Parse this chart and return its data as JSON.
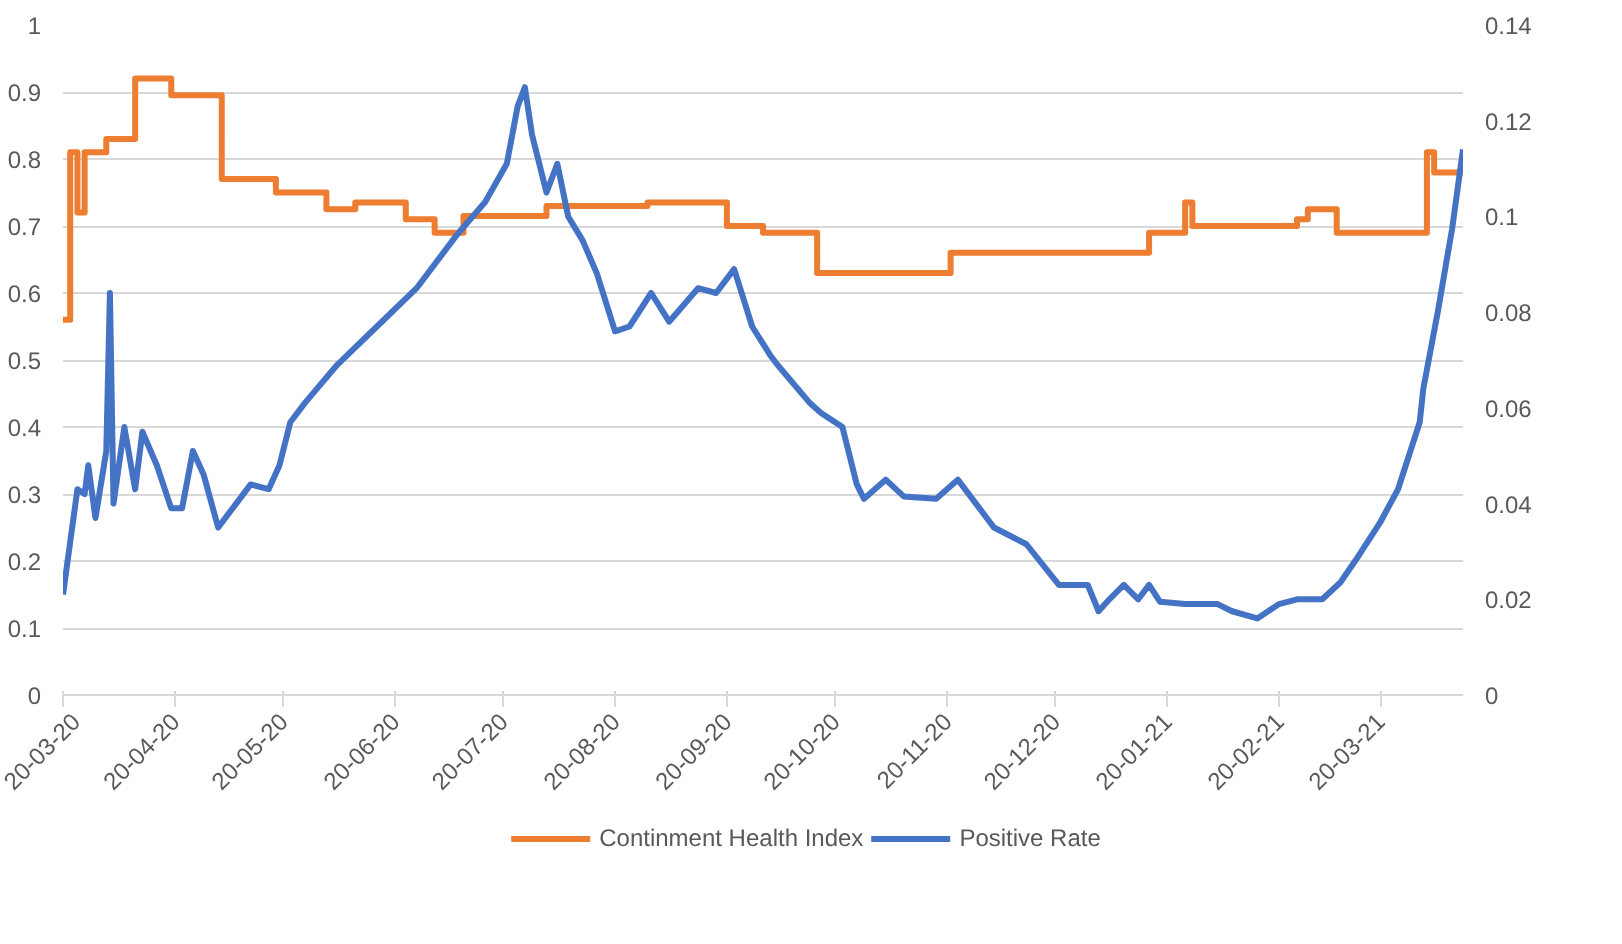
{
  "chart_data": {
    "type": "line",
    "xlim": [
      "2020-03-20",
      "2021-04-12"
    ],
    "xticks": [
      {
        "value": "2020-03-20",
        "label": "20-03-20"
      },
      {
        "value": "2020-04-20",
        "label": "20-04-20"
      },
      {
        "value": "2020-05-20",
        "label": "20-05-20"
      },
      {
        "value": "2020-06-20",
        "label": "20-06-20"
      },
      {
        "value": "2020-07-20",
        "label": "20-07-20"
      },
      {
        "value": "2020-08-20",
        "label": "20-08-20"
      },
      {
        "value": "2020-09-20",
        "label": "20-09-20"
      },
      {
        "value": "2020-10-20",
        "label": "20-10-20"
      },
      {
        "value": "2020-11-20",
        "label": "20-11-20"
      },
      {
        "value": "2020-12-20",
        "label": "20-12-20"
      },
      {
        "value": "2021-01-20",
        "label": "20-01-21"
      },
      {
        "value": "2021-02-20",
        "label": "20-02-21"
      },
      {
        "value": "2021-03-20",
        "label": "20-03-21"
      }
    ],
    "ylim": [
      0,
      1
    ],
    "yticks": [
      0,
      0.1,
      0.2,
      0.3,
      0.4,
      0.5,
      0.6,
      0.7,
      0.8,
      0.9,
      1
    ],
    "y2lim": [
      0,
      0.14
    ],
    "y2ticks": [
      0,
      0.02,
      0.04,
      0.06,
      0.08,
      0.1,
      0.12,
      0.14
    ],
    "grid": "y",
    "legend": "bottom",
    "marker": "none",
    "line_style": "solid",
    "series": [
      {
        "name": "Continment Health Index",
        "type": "step",
        "color": "#ed7d31",
        "x": [
          "2020-03-20",
          "2020-03-22",
          "2020-03-24",
          "2020-03-26",
          "2020-04-01",
          "2020-04-09",
          "2020-04-19",
          "2020-05-03",
          "2020-05-18",
          "2020-06-01",
          "2020-06-09",
          "2020-06-23",
          "2020-07-01",
          "2020-07-09",
          "2020-08-01",
          "2020-08-29",
          "2020-09-20",
          "2020-09-30",
          "2020-10-15",
          "2020-11-21",
          "2021-01-15",
          "2021-01-25",
          "2021-01-27",
          "2021-02-25",
          "2021-02-28",
          "2021-03-08",
          "2021-04-02",
          "2021-04-04",
          "2021-04-12"
        ],
        "values": [
          0.56,
          0.81,
          0.72,
          0.81,
          0.83,
          0.92,
          0.895,
          0.77,
          0.75,
          0.725,
          0.735,
          0.71,
          0.69,
          0.715,
          0.73,
          0.735,
          0.7,
          0.69,
          0.63,
          0.66,
          0.69,
          0.735,
          0.7,
          0.71,
          0.725,
          0.69,
          0.81,
          0.78,
          0.78
        ]
      },
      {
        "name": "Positive Rate",
        "axis": "y2",
        "color": "#4472c4",
        "x": [
          "2020-03-20",
          "2020-03-22",
          "2020-03-24",
          "2020-03-26",
          "2020-03-27",
          "2020-03-29",
          "2020-04-01",
          "2020-04-02",
          "2020-04-03",
          "2020-04-06",
          "2020-04-09",
          "2020-04-11",
          "2020-04-15",
          "2020-04-19",
          "2020-04-22",
          "2020-04-25",
          "2020-04-28",
          "2020-05-02",
          "2020-05-07",
          "2020-05-11",
          "2020-05-16",
          "2020-05-19",
          "2020-05-22",
          "2020-05-26",
          "2020-06-04",
          "2020-06-15",
          "2020-06-26",
          "2020-07-07",
          "2020-07-15",
          "2020-07-21",
          "2020-07-24",
          "2020-07-26",
          "2020-07-28",
          "2020-08-01",
          "2020-08-04",
          "2020-08-07",
          "2020-08-11",
          "2020-08-15",
          "2020-08-20",
          "2020-08-24",
          "2020-08-30",
          "2020-09-04",
          "2020-09-12",
          "2020-09-17",
          "2020-09-22",
          "2020-09-27",
          "2020-10-02",
          "2020-10-04",
          "2020-10-13",
          "2020-10-16",
          "2020-10-22",
          "2020-10-26",
          "2020-10-28",
          "2020-11-03",
          "2020-11-08",
          "2020-11-17",
          "2020-11-23",
          "2020-12-03",
          "2020-12-12",
          "2020-12-21",
          "2020-12-29",
          "2021-01-01",
          "2021-01-04",
          "2021-01-08",
          "2021-01-12",
          "2021-01-15",
          "2021-01-18",
          "2021-01-25",
          "2021-02-03",
          "2021-02-07",
          "2021-02-14",
          "2021-02-20",
          "2021-02-25",
          "2021-03-04",
          "2021-03-09",
          "2021-03-14",
          "2021-03-20",
          "2021-03-25",
          "2021-03-31",
          "2021-04-01",
          "2021-04-05",
          "2021-04-09",
          "2021-04-12"
        ],
        "values": [
          0.021,
          0.032,
          0.043,
          0.042,
          0.048,
          0.037,
          0.051,
          0.084,
          0.04,
          0.056,
          0.043,
          0.055,
          0.048,
          0.039,
          0.039,
          0.051,
          0.046,
          0.035,
          0.04,
          0.044,
          0.043,
          0.048,
          0.057,
          0.061,
          0.069,
          0.077,
          0.085,
          0.096,
          0.103,
          0.111,
          0.123,
          0.127,
          0.117,
          0.105,
          0.111,
          0.1,
          0.095,
          0.088,
          0.076,
          0.077,
          0.084,
          0.078,
          0.085,
          0.084,
          0.089,
          0.077,
          0.071,
          0.069,
          0.061,
          0.059,
          0.056,
          0.044,
          0.041,
          0.045,
          0.0415,
          0.041,
          0.045,
          0.035,
          0.0315,
          0.023,
          0.023,
          0.0175,
          0.02,
          0.023,
          0.02,
          0.023,
          0.0195,
          0.019,
          0.019,
          0.0175,
          0.016,
          0.019,
          0.02,
          0.02,
          0.0235,
          0.029,
          0.036,
          0.043,
          0.057,
          0.064,
          0.08,
          0.0975,
          0.114
        ]
      }
    ]
  }
}
